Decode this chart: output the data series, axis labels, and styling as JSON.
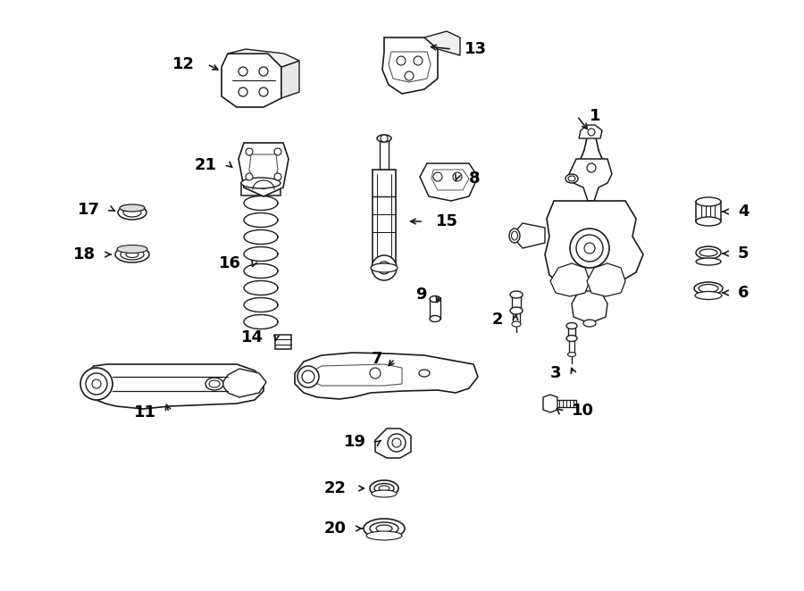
{
  "bg_color": "#ffffff",
  "line_color": "#1a1a1a",
  "text_color": "#000000",
  "fig_width": 9.0,
  "fig_height": 6.62,
  "dpi": 100
}
